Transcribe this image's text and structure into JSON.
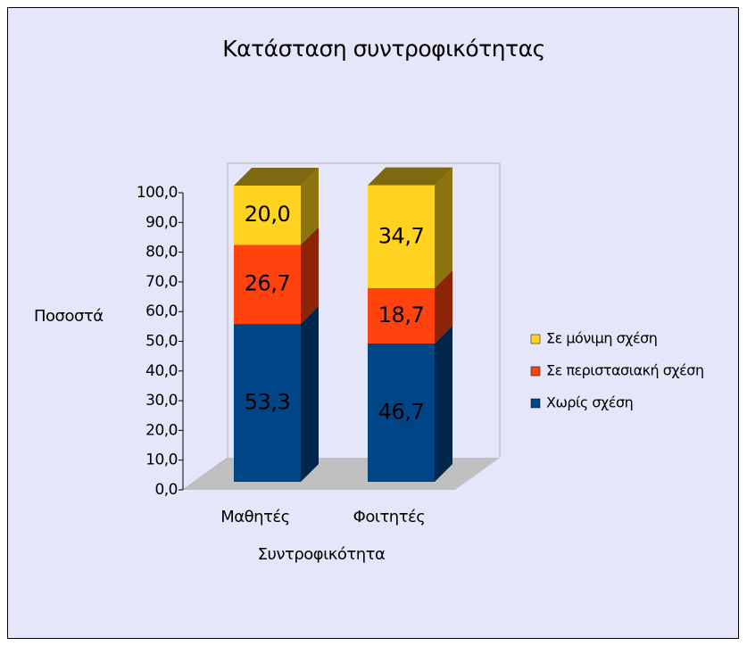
{
  "chart_data": {
    "type": "bar3d_stacked",
    "title": "Κατάσταση συντροφικότητας",
    "x_label": "Συντροφικότητα",
    "y_label": "Ποσοστά",
    "categories": [
      "Μαθητές",
      "Φοιτητές"
    ],
    "series": [
      {
        "name": "Χωρίς σχέση",
        "color": "#004586",
        "values": [
          53.3,
          46.7
        ],
        "value_labels": [
          "53,3",
          "46,7"
        ]
      },
      {
        "name": "Σε περιστασιακή σχέση",
        "color": "#ff420e",
        "values": [
          26.7,
          18.7
        ],
        "value_labels": [
          "26,7",
          "18,7"
        ]
      },
      {
        "name": "Σε μόνιμη σχέση",
        "color": "#ffd320",
        "values": [
          20.0,
          34.7
        ],
        "value_labels": [
          "20,0",
          "34,7"
        ]
      }
    ],
    "ylim": [
      0,
      100
    ],
    "yticks": [
      {
        "value": 0,
        "label": "0,0"
      },
      {
        "value": 10,
        "label": "10,0"
      },
      {
        "value": 20,
        "label": "20,0"
      },
      {
        "value": 30,
        "label": "30,0"
      },
      {
        "value": 40,
        "label": "40,0"
      },
      {
        "value": 50,
        "label": "50,0"
      },
      {
        "value": 60,
        "label": "60,0"
      },
      {
        "value": 70,
        "label": "70,0"
      },
      {
        "value": 80,
        "label": "80,0"
      },
      {
        "value": 90,
        "label": "90,0"
      },
      {
        "value": 100,
        "label": "100,0"
      }
    ],
    "legend": "right"
  }
}
